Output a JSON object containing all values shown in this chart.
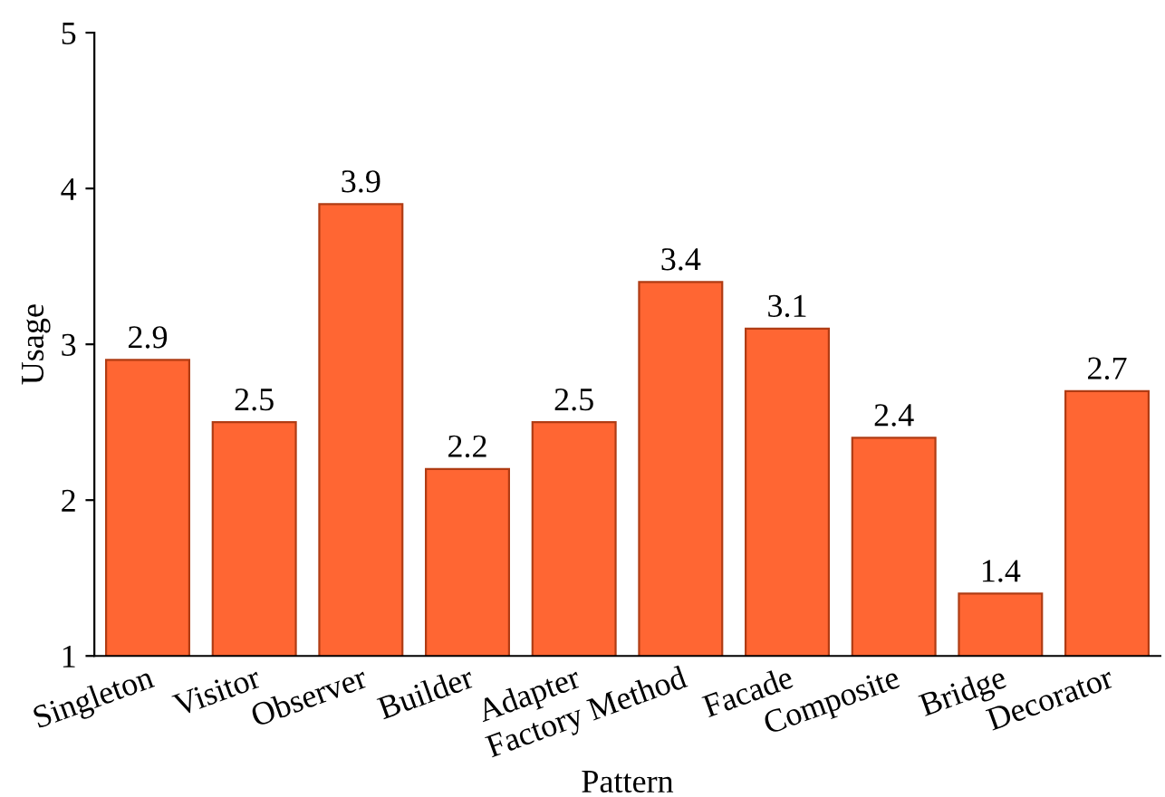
{
  "chart_data": {
    "type": "bar",
    "xlabel": "Pattern",
    "ylabel": "Usage",
    "categories": [
      "Singleton",
      "Visitor",
      "Observer",
      "Builder",
      "Adapter",
      "Factory Method",
      "Facade",
      "Composite",
      "Bridge",
      "Decorator"
    ],
    "values": [
      2.9,
      2.5,
      3.9,
      2.2,
      2.5,
      3.4,
      3.1,
      2.4,
      1.4,
      2.7
    ],
    "color": "#ff6633",
    "ylim": [
      1,
      5
    ],
    "yticks": [
      1,
      2,
      3,
      4,
      5
    ],
    "grid": false,
    "data_labels": true,
    "legend": false
  }
}
